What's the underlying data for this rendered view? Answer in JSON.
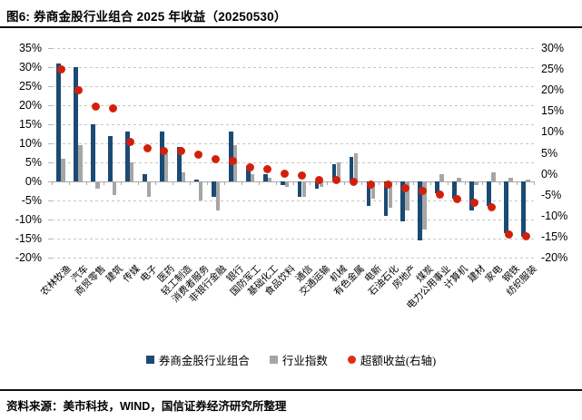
{
  "figure": {
    "title": "图6: 券商金股行业组合 2025 年收益（20250530）",
    "source_note": "资料来源：美市科技，WIND，国信证券经济研究所整理"
  },
  "colors": {
    "portfolio_bar": "#1b4a74",
    "index_bar": "#a6a6a6",
    "excess_dot": "#df2d14",
    "grid": "#c6c6c6",
    "axis": "#a9a9a9",
    "rule": "#111111"
  },
  "legend": {
    "items": [
      {
        "key": "portfolio",
        "label": "券商金股行业组合",
        "marker": "square",
        "color": "#1b4a74"
      },
      {
        "key": "industry-index",
        "label": "行业指数",
        "marker": "square",
        "color": "#a6a6a6"
      },
      {
        "key": "excess-return",
        "label": "超额收益(右轴)",
        "marker": "circle",
        "color": "#df2d14"
      }
    ]
  },
  "chart_data": {
    "type": "bar",
    "title": "券商金股行业组合 2025 年收益（20250530）",
    "grid": "horizontal-dashed",
    "legend_position": "bottom",
    "categories": [
      "农林牧渔",
      "汽车",
      "商贸零售",
      "建筑",
      "传媒",
      "电子",
      "医药",
      "轻工制造",
      "消费者服务",
      "非银行金融",
      "银行",
      "国防军工",
      "基础化工",
      "食品饮料",
      "通信",
      "交通运输",
      "机械",
      "有色金属",
      "电新",
      "石油石化",
      "房地产",
      "煤炭",
      "电力公用事业",
      "计算机",
      "建材",
      "家电",
      "钢铁",
      "纺织服装"
    ],
    "series": [
      {
        "key": "portfolio",
        "name": "券商金股行业组合",
        "type": "bar",
        "axis": "left",
        "color": "#1b4a74",
        "values": [
          31,
          30,
          15,
          12,
          13,
          2,
          13,
          9,
          0.5,
          -4,
          13,
          4,
          2,
          -1,
          -4,
          -2,
          4.5,
          6.5,
          -6.5,
          -9,
          -10.5,
          -15.5,
          -3,
          -4.5,
          -7.5,
          -6.5,
          -13.5,
          -14.5
        ]
      },
      {
        "key": "industry-index",
        "name": "行业指数",
        "type": "bar",
        "axis": "left",
        "color": "#a6a6a6",
        "values": [
          6,
          9.5,
          -2,
          -3.5,
          5,
          -4,
          7.5,
          2.5,
          -5,
          -7.5,
          9.5,
          2,
          1,
          -1.5,
          -4,
          -1.5,
          5,
          7.5,
          -4.5,
          -7,
          -7.5,
          -12.5,
          2,
          1,
          -1,
          2.5,
          1,
          0.5
        ]
      },
      {
        "key": "excess-return",
        "name": "超额收益(右轴)",
        "type": "scatter",
        "axis": "right",
        "color": "#df2d14",
        "values": [
          25,
          20,
          16,
          15.5,
          7.5,
          6,
          5.5,
          5.5,
          4.5,
          3.5,
          3,
          1.5,
          1,
          0,
          -0.5,
          -1.5,
          -1.5,
          -2,
          -2.5,
          -2.5,
          -3.5,
          -4,
          -5,
          -6,
          -7,
          -8,
          -14.5,
          -15
        ]
      }
    ],
    "left_axis": {
      "min": -20,
      "max": 35,
      "step": 5,
      "unit": "%",
      "tick_labels": [
        "35%",
        "30%",
        "25%",
        "20%",
        "15%",
        "10%",
        "5%",
        "0%",
        "-5%",
        "-10%",
        "-15%",
        "-20%"
      ]
    },
    "right_axis": {
      "min": -20,
      "max": 30,
      "step": 5,
      "unit": "%",
      "tick_labels": [
        "30%",
        "25%",
        "20%",
        "15%",
        "10%",
        "5%",
        "0%",
        "-5%",
        "-10%",
        "-15%",
        "-20%"
      ]
    }
  }
}
